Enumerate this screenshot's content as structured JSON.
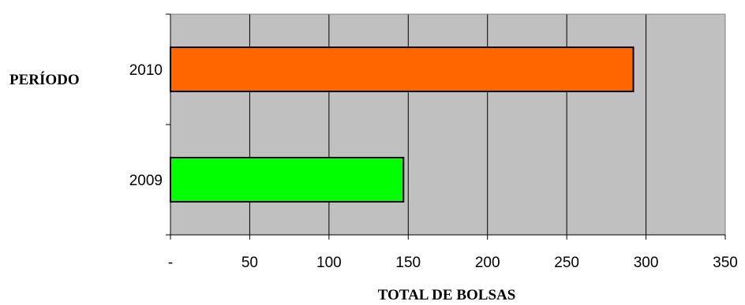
{
  "chart_data": {
    "type": "bar",
    "orientation": "horizontal",
    "categories": [
      "2009",
      "2010"
    ],
    "values": [
      147,
      292
    ],
    "bar_colors": [
      "#00FF00",
      "#FF6600"
    ],
    "xlabel": "TOTAL DE BOLSAS",
    "ylabel": "PERÍODO",
    "xlim": [
      0,
      350
    ],
    "x_ticks": [
      0,
      50,
      100,
      150,
      200,
      250,
      300,
      350
    ],
    "x_tick_labels": [
      "-",
      "50",
      "100",
      "150",
      "200",
      "250",
      "300",
      "350"
    ],
    "grid": "vertical",
    "plot_background": "#C0C0C0",
    "legend": "none"
  }
}
